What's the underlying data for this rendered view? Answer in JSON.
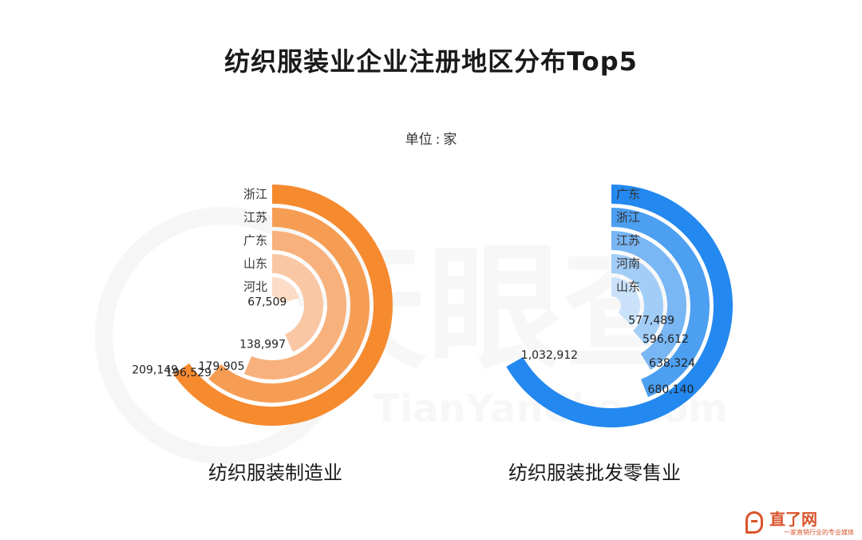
{
  "title": "纺织服装业企业注册地区分布Top5",
  "unit": {
    "label": "单位",
    "value": "家"
  },
  "watermark": {
    "brand": "天眼查",
    "url": "TianYanCha.com"
  },
  "logo": {
    "name": "直了网",
    "tagline": "一家直销行业的专业媒体"
  },
  "chart_data": [
    {
      "type": "radial-bar",
      "subtitle": "纺织服装制造业",
      "categories": [
        "浙江",
        "江苏",
        "广东",
        "山东",
        "河北"
      ],
      "values": [
        209149,
        196529,
        179905,
        138997,
        67509
      ],
      "value_labels": [
        "209,149",
        "196,529",
        "179,905",
        "138,997",
        "67,509"
      ],
      "colors": [
        "#f58a2f",
        "#f69d54",
        "#f8b17c",
        "#fac7a5",
        "#fcdcc6"
      ],
      "max": 209149
    },
    {
      "type": "radial-bar",
      "subtitle": "纺织服装批发零售业",
      "categories": [
        "广东",
        "浙江",
        "江苏",
        "河南",
        "山东"
      ],
      "values": [
        1032912,
        680140,
        638324,
        596612,
        577489
      ],
      "value_labels": [
        "1,032,912",
        "680,140",
        "638,324",
        "596,612",
        "577,489"
      ],
      "colors": [
        "#2388ef",
        "#4c9ff1",
        "#78b6f4",
        "#a2cdf7",
        "#c9e2fa"
      ],
      "max": 1032912
    }
  ]
}
